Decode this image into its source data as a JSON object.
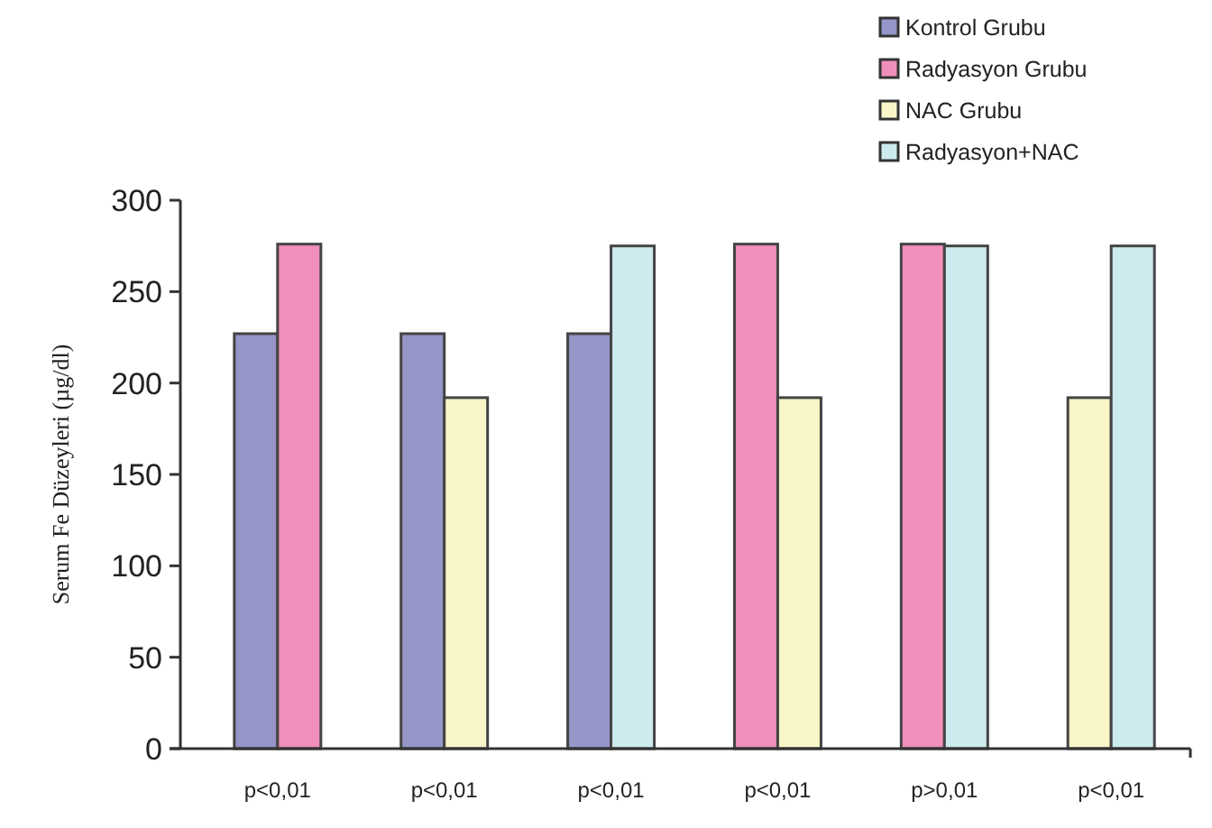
{
  "chart_data": {
    "type": "bar",
    "ylabel": "Serum Fe Düzeyleri  (µg/dl)",
    "categories": [
      "p<0,01",
      "p<0,01",
      "p<0,01",
      "p<0,01",
      "p>0,01",
      "p<0,01"
    ],
    "series": [
      {
        "name": "Kontrol Grubu",
        "color": "#9595c8",
        "values": [
          227,
          227,
          227,
          null,
          null,
          null
        ]
      },
      {
        "name": "Radyasyon Grubu",
        "color": "#f08fbb",
        "values": [
          276,
          null,
          null,
          276,
          276,
          null
        ]
      },
      {
        "name": "NAC Grubu",
        "color": "#f8f6c8",
        "values": [
          null,
          192,
          null,
          192,
          null,
          192
        ]
      },
      {
        "name": "Radyasyon+NAC",
        "color": "#cdebef",
        "values": [
          null,
          null,
          275,
          null,
          275,
          275
        ]
      }
    ],
    "ylim": [
      0,
      300
    ],
    "yticks": [
      0,
      50,
      100,
      150,
      200,
      250,
      300
    ],
    "grid": false,
    "legend": "top right"
  }
}
